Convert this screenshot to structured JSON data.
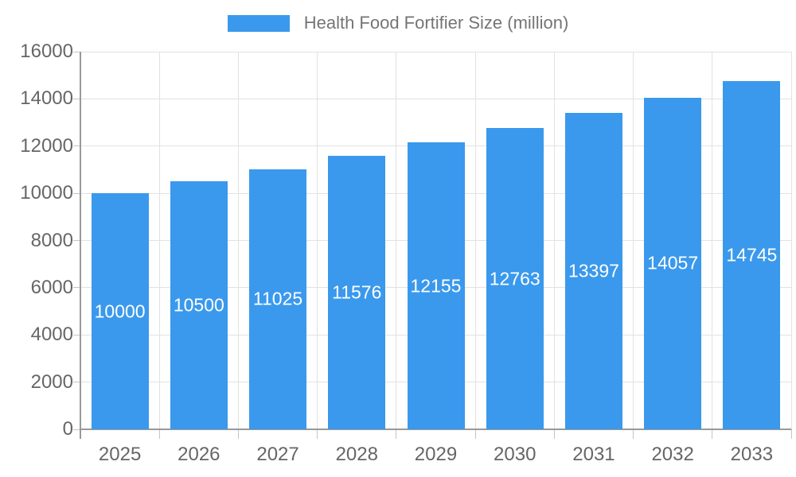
{
  "legend": {
    "label": "Health Food Fortifier Size (million)"
  },
  "colors": {
    "bar": "#3A99EC",
    "axis_line": "#999999",
    "grid_line": "#E2E2E2",
    "tick": "#C4C4C4",
    "axis_label_text": "#666666",
    "legend_text": "#757575",
    "bar_label_text": "#FFFFFF",
    "background": "#FFFFFF"
  },
  "chart_data": {
    "type": "bar",
    "title": "Health Food Fortifier Size (million)",
    "series": [
      {
        "name": "Health Food Fortifier Size (million)",
        "values": [
          10000,
          10500,
          11025,
          11576,
          12155,
          12763,
          13397,
          14057,
          14745
        ]
      }
    ],
    "categories": [
      "2025",
      "2026",
      "2027",
      "2028",
      "2029",
      "2030",
      "2031",
      "2032",
      "2033"
    ],
    "bar_value_labels": [
      "10000",
      "10500",
      "11025",
      "11576",
      "12155",
      "12763",
      "13397",
      "14057",
      "14745"
    ],
    "xlabel": "",
    "ylabel": "",
    "ylim": [
      0,
      16000
    ],
    "yticks": [
      0,
      2000,
      4000,
      6000,
      8000,
      10000,
      12000,
      14000,
      16000
    ],
    "ytick_labels": [
      "0",
      "2000",
      "4000",
      "6000",
      "8000",
      "10000",
      "12000",
      "14000",
      "16000"
    ],
    "grid": "horizontal and vertical light gray gridlines",
    "legend_position": "top-center",
    "bar_label_position": "inside-middle"
  }
}
